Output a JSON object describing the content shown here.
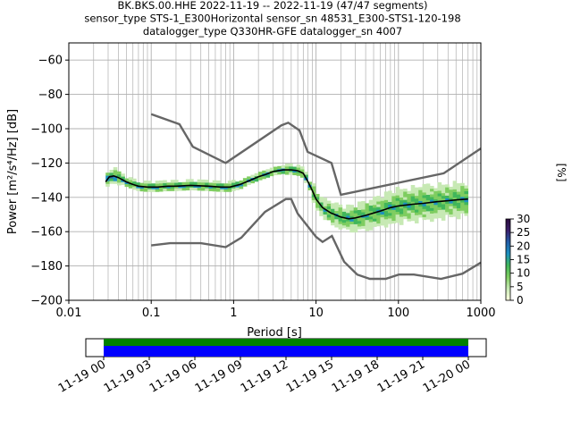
{
  "title_lines": [
    "BK.BKS.00.HHE   2022-11-19 -- 2022-11-19  (47/47 segments)",
    "sensor_type STS-1_E300Horizontal sensor_sn 48531_E300-STS1-120-198",
    "datalogger_type Q330HR-GFE datalogger_sn 4007"
  ],
  "chart_data": {
    "type": "line",
    "title": "BK.BKS.00.HHE   2022-11-19 -- 2022-11-19  (47/47 segments)",
    "xlabel": "Period [s]",
    "ylabel": "Power [m²/s⁴/Hz] [dB]",
    "xscale": "log",
    "xlim": [
      0.01,
      1000
    ],
    "ylim": [
      -200,
      -50
    ],
    "x_ticks": [
      0.01,
      0.1,
      1,
      10,
      100,
      1000
    ],
    "x_tick_labels": [
      "0.01",
      "0.1",
      "1",
      "10",
      "100",
      "1000"
    ],
    "y_ticks": [
      -200,
      -180,
      -160,
      -140,
      -120,
      -100,
      -80,
      -60
    ],
    "y_tick_labels": [
      "−200",
      "−180",
      "−160",
      "−140",
      "−120",
      "−100",
      "−80",
      "−60"
    ],
    "grid": true,
    "series": [
      {
        "role": "mean",
        "color": "#000000",
        "x": [
          0.028,
          0.031,
          0.035,
          0.04,
          0.05,
          0.06,
          0.07,
          0.09,
          0.12,
          0.16,
          0.2,
          0.3,
          0.5,
          0.7,
          0.9,
          1.2,
          1.6,
          2.0,
          2.5,
          3.0,
          4.0,
          5.0,
          6.0,
          7.0,
          8.0,
          9.0,
          10.0,
          12.0,
          15.0,
          20.0,
          25.0,
          30.0,
          40.0,
          60.0,
          80.0,
          100.0,
          150.0,
          200.0,
          300.0,
          400.0,
          500.0,
          700.0
        ],
        "y": [
          -131,
          -128,
          -127.5,
          -128.5,
          -131,
          -132.5,
          -133.5,
          -134,
          -134,
          -133.5,
          -133.5,
          -133,
          -133.5,
          -134,
          -134,
          -132.5,
          -130,
          -128,
          -126.5,
          -125,
          -124,
          -124,
          -124.5,
          -126,
          -131,
          -136,
          -141,
          -146,
          -149,
          -151.5,
          -152.5,
          -152,
          -150.5,
          -148,
          -146,
          -145,
          -144,
          -143.5,
          -142.5,
          -142,
          -141.5,
          -141
        ]
      }
    ],
    "noise_models": [
      {
        "name": "",
        "color": "#666666",
        "x": [
          0.1,
          0.22,
          0.32,
          0.8,
          3.8,
          4.6,
          6.3,
          7.9,
          15.4,
          20.0,
          354.8,
          1000.0
        ],
        "y": [
          -91.5,
          -97.4,
          -110.5,
          -120.0,
          -98.0,
          -96.5,
          -101.0,
          -113.5,
          -120.0,
          -138.5,
          -126.0,
          -111.5
        ]
      },
      {
        "name": "",
        "color": "#666666",
        "x": [
          0.1,
          0.17,
          0.4,
          0.8,
          1.24,
          2.4,
          4.3,
          5.0,
          6.0,
          10.0,
          12.0,
          15.6,
          21.9,
          31.6,
          45.0,
          70.0,
          101.0,
          154.0,
          328.0,
          600.0,
          1000.0
        ],
        "y": [
          -168.0,
          -166.7,
          -166.7,
          -169.0,
          -163.5,
          -148.5,
          -141.0,
          -141.0,
          -149.5,
          -163.0,
          -166.0,
          -162.5,
          -177.5,
          -185.0,
          -187.5,
          -187.5,
          -185.0,
          -185.0,
          -187.5,
          -184.5,
          -178.0
        ]
      }
    ],
    "colorbar": {
      "label": "[%]",
      "min": 0,
      "max": 30,
      "ticks": [
        0,
        5,
        10,
        15,
        20,
        25,
        30
      ],
      "tick_labels": [
        "0",
        "5",
        "10",
        "15",
        "20",
        "25",
        "30"
      ],
      "colors": [
        "#ffffe0",
        "#c7e9b4",
        "#7fcd60",
        "#41b65a",
        "#1d91c0",
        "#225ea8",
        "#3b1f6b",
        "#2a0b3d"
      ]
    },
    "time_axis": {
      "tick_labels": [
        "11-19 00",
        "11-19 03",
        "11-19 06",
        "11-19 09",
        "11-19 12",
        "11-19 15",
        "11-19 18",
        "11-19 21",
        "11-20 00"
      ],
      "coverage_colors": [
        "#008000",
        "#0000ff"
      ]
    }
  }
}
